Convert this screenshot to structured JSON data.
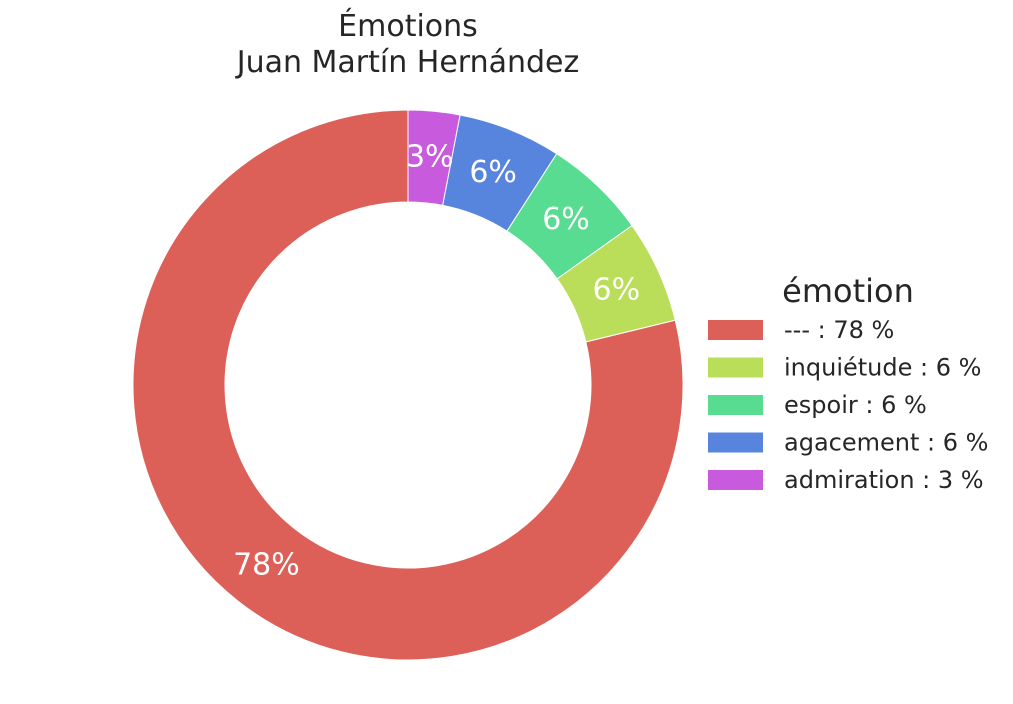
{
  "chart_data": {
    "type": "pie",
    "style": "donut",
    "title_lines": [
      "Émotions",
      "Juan Martín Hernández"
    ],
    "slices": [
      {
        "label": "---",
        "value": 78,
        "percent_label": "78%",
        "legend_label": "--- : 78 %",
        "color": "#dc6058"
      },
      {
        "label": "inquiétude",
        "value": 6,
        "percent_label": "6%",
        "legend_label": "inquiétude : 6 %",
        "color": "#badd5a"
      },
      {
        "label": "espoir",
        "value": 6,
        "percent_label": "6%",
        "legend_label": "espoir : 6 %",
        "color": "#57dc91"
      },
      {
        "label": "agacement",
        "value": 6,
        "percent_label": "6%",
        "legend_label": "agacement : 6 %",
        "color": "#5784dc"
      },
      {
        "label": "admiration",
        "value": 3,
        "percent_label": "3%",
        "legend_label": "admiration : 3 %",
        "color": "#c85ade"
      }
    ],
    "legend": {
      "title": "émotion",
      "placement": "right"
    }
  }
}
